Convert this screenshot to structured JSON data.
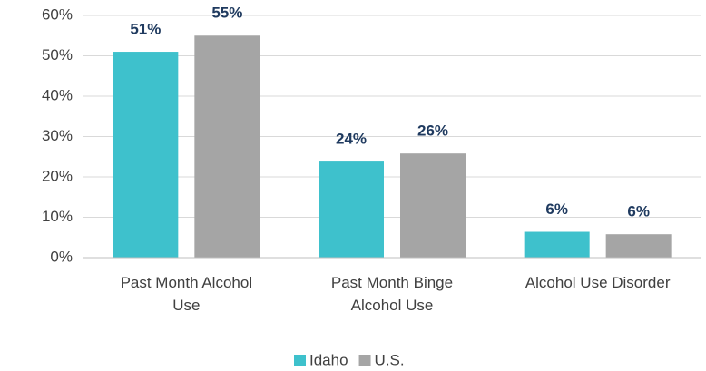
{
  "chart_data": {
    "type": "bar",
    "categories": [
      "Past Month Alcohol Use",
      "Past Month Binge Alcohol Use",
      "Alcohol Use Disorder"
    ],
    "series": [
      {
        "name": "Idaho",
        "color": "#3ec1cc",
        "values": [
          51,
          23.8,
          6.4
        ],
        "value_labels": [
          "51%",
          "24%",
          "6%"
        ]
      },
      {
        "name": "U.S.",
        "color": "#a5a5a5",
        "values": [
          55,
          25.8,
          5.8
        ],
        "value_labels": [
          "55%",
          "26%",
          "6%"
        ]
      }
    ],
    "ylim": [
      0,
      60
    ],
    "yticks": [
      {
        "value": 0,
        "label": "0%"
      },
      {
        "value": 10,
        "label": "10%"
      },
      {
        "value": 20,
        "label": "20%"
      },
      {
        "value": 30,
        "label": "30%"
      },
      {
        "value": 40,
        "label": "40%"
      },
      {
        "value": 50,
        "label": "50%"
      },
      {
        "value": 60,
        "label": "60%"
      }
    ],
    "grid": true,
    "legend": "bottom"
  }
}
